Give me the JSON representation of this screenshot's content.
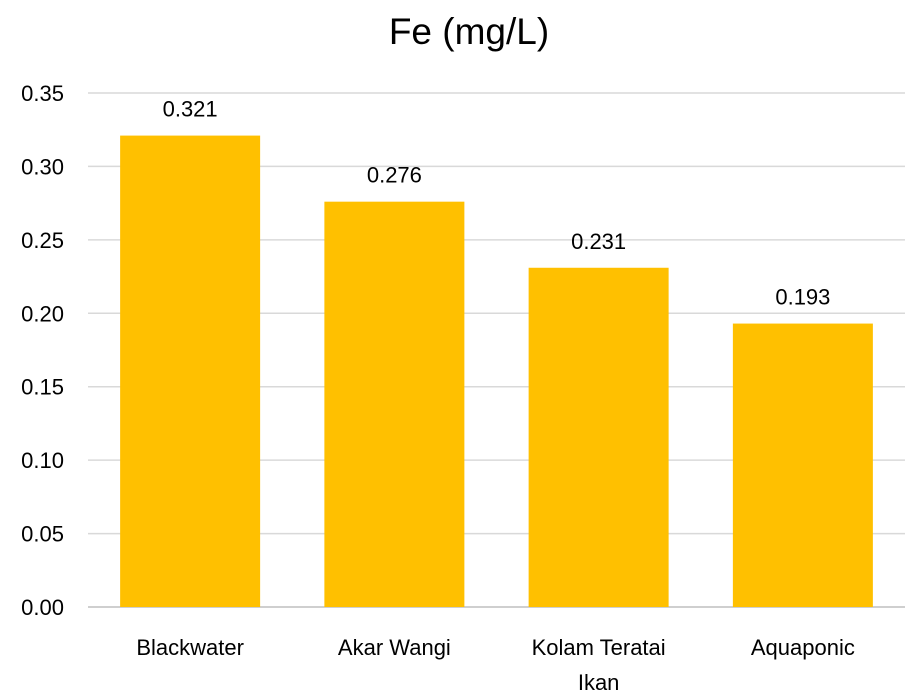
{
  "chart_data": {
    "type": "bar",
    "title": "Fe (mg/L)",
    "xlabel": "",
    "ylabel": "",
    "categories": [
      "Blackwater",
      "Akar Wangi",
      "Kolam Teratai Ikan",
      "Aquaponic"
    ],
    "category_lines": [
      [
        "Blackwater"
      ],
      [
        "Akar Wangi"
      ],
      [
        "Kolam Teratai",
        "Ikan"
      ],
      [
        "Aquaponic"
      ]
    ],
    "values": [
      0.321,
      0.276,
      0.231,
      0.193
    ],
    "data_labels": [
      "0.321",
      "0.276",
      "0.231",
      "0.193"
    ],
    "ylim": [
      0,
      0.35
    ],
    "yticks": [
      0.0,
      0.05,
      0.1,
      0.15,
      0.2,
      0.25,
      0.3,
      0.35
    ],
    "ytick_labels": [
      "0.00",
      "0.05",
      "0.10",
      "0.15",
      "0.20",
      "0.25",
      "0.30",
      "0.35"
    ],
    "grid": true,
    "legend": "none",
    "bar_color": "#ffc000",
    "grid_color": "#d9d9d9"
  }
}
